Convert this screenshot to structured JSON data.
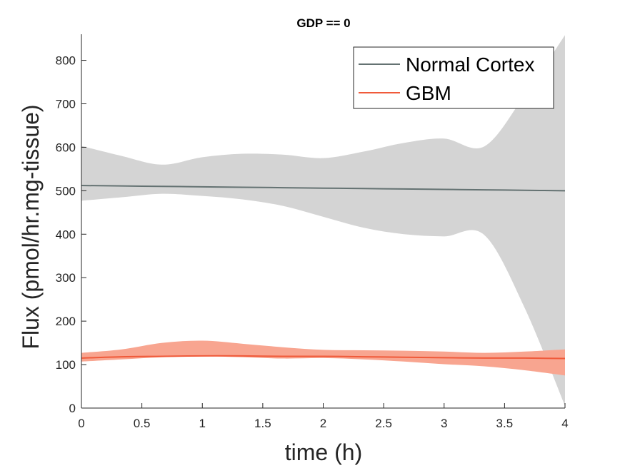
{
  "chart_data": {
    "type": "area",
    "title": "GDP == 0",
    "xlabel": "time (h)",
    "ylabel": "Flux (pmol/hr.mg-tissue)",
    "xlim": [
      0,
      4
    ],
    "ylim": [
      0,
      860
    ],
    "xticks": [
      0,
      0.5,
      1,
      1.5,
      2,
      2.5,
      3,
      3.5,
      4
    ],
    "xtick_labels": [
      "0",
      "0.5",
      "1",
      "1.5",
      "2",
      "2.5",
      "3",
      "3.5",
      "4"
    ],
    "yticks": [
      0,
      100,
      200,
      300,
      400,
      500,
      600,
      700,
      800
    ],
    "ytick_labels": [
      "0",
      "100",
      "200",
      "300",
      "400",
      "500",
      "600",
      "700",
      "800"
    ],
    "grid": false,
    "legend_position": "top-right",
    "series": [
      {
        "name": "Normal Cortex",
        "color": "#647272",
        "band_color": "#d4d4d4",
        "x": [
          0,
          0.333,
          0.667,
          1.0,
          1.333,
          1.667,
          2.0,
          2.333,
          2.667,
          3.0,
          3.333,
          3.667,
          4.0
        ],
        "mean": [
          512,
          511,
          510,
          509,
          508,
          507,
          506,
          505,
          504,
          503,
          502,
          501,
          500
        ],
        "upper": [
          603,
          580,
          560,
          577,
          585,
          583,
          575,
          590,
          610,
          620,
          602,
          720,
          858
        ],
        "lower": [
          477,
          485,
          493,
          488,
          480,
          465,
          440,
          415,
          400,
          395,
          398,
          230,
          5
        ]
      },
      {
        "name": "GBM",
        "color": "#f05a3a",
        "band_color": "#f8a590",
        "x": [
          0,
          0.333,
          0.667,
          1.0,
          1.333,
          1.667,
          2.0,
          2.333,
          2.667,
          3.0,
          3.333,
          3.667,
          4.0
        ],
        "mean": [
          115,
          118,
          119,
          120,
          120,
          119,
          119,
          118,
          117,
          116,
          115,
          115,
          114
        ],
        "upper": [
          127,
          135,
          150,
          155,
          148,
          140,
          134,
          133,
          132,
          130,
          127,
          130,
          135
        ],
        "lower": [
          107,
          112,
          117,
          119,
          117,
          114,
          115,
          112,
          107,
          101,
          96,
          87,
          75
        ]
      }
    ]
  }
}
